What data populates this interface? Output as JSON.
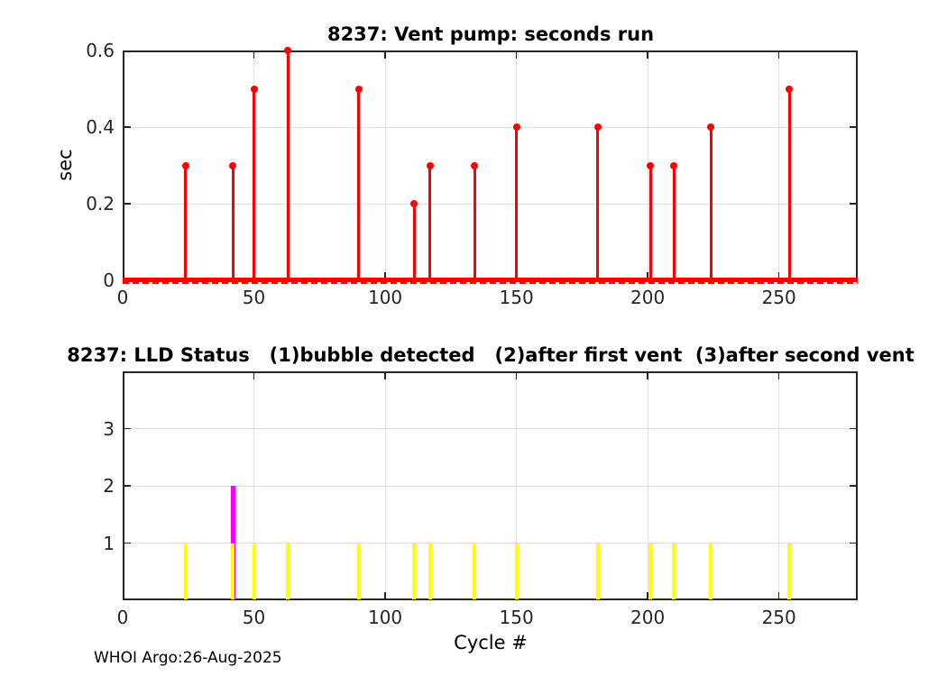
{
  "figure": {
    "background": "#ffffff",
    "footer_text": "WHOI Argo:26-Aug-2025",
    "axis_color": "#262626",
    "grid_color": "#e0e0e0",
    "text_color": "#000000"
  },
  "chart_data": [
    {
      "type": "stem",
      "title": "8237: Vent pump: seconds run",
      "xlabel": "",
      "ylabel": "sec",
      "xlim": [
        0,
        280
      ],
      "ylim": [
        0,
        0.6
      ],
      "xticks": [
        0,
        50,
        100,
        150,
        200,
        250
      ],
      "yticks": [
        0,
        0.2,
        0.4,
        0.6
      ],
      "grid": true,
      "legend": "none",
      "series": [
        {
          "name": "vent-pump-seconds-run",
          "color": "#ff0000",
          "marker": "filled-circle",
          "points": [
            {
              "x": 24,
              "y": 0.3
            },
            {
              "x": 42,
              "y": 0.3
            },
            {
              "x": 50,
              "y": 0.5
            },
            {
              "x": 63,
              "y": 0.6
            },
            {
              "x": 90,
              "y": 0.5
            },
            {
              "x": 111,
              "y": 0.2
            },
            {
              "x": 117,
              "y": 0.3
            },
            {
              "x": 134,
              "y": 0.3
            },
            {
              "x": 150,
              "y": 0.4
            },
            {
              "x": 181,
              "y": 0.4
            },
            {
              "x": 201,
              "y": 0.3
            },
            {
              "x": 210,
              "y": 0.3
            },
            {
              "x": 224,
              "y": 0.4
            },
            {
              "x": 254,
              "y": 0.5
            }
          ],
          "baseline": {
            "y": 0,
            "x_start": 0,
            "x_end": 280,
            "all_other_cycles_value": 0
          }
        }
      ]
    },
    {
      "type": "stem",
      "title": "8237: LLD Status   (1)bubble detected   (2)after first vent  (3)after second vent",
      "xlabel": "Cycle #",
      "ylabel": "",
      "xlim": [
        0,
        280
      ],
      "ylim": [
        0,
        4
      ],
      "xticks": [
        0,
        50,
        100,
        150,
        200,
        250
      ],
      "yticks": [
        1,
        2,
        3
      ],
      "grid": true,
      "legend": "none",
      "series": [
        {
          "name": "lld-status-after-first-vent",
          "color": "#ff00ff",
          "marker": "none",
          "points": [
            {
              "x": 42,
              "y": 2
            }
          ]
        },
        {
          "name": "lld-status-bubble-detected",
          "color": "#ffff00",
          "marker": "none",
          "points": [
            {
              "x": 24,
              "y": 1
            },
            {
              "x": 42,
              "y": 1
            },
            {
              "x": 50,
              "y": 1
            },
            {
              "x": 63,
              "y": 1
            },
            {
              "x": 90,
              "y": 1
            },
            {
              "x": 111,
              "y": 1
            },
            {
              "x": 117,
              "y": 1
            },
            {
              "x": 134,
              "y": 1
            },
            {
              "x": 150,
              "y": 1
            },
            {
              "x": 181,
              "y": 1
            },
            {
              "x": 201,
              "y": 1
            },
            {
              "x": 210,
              "y": 1
            },
            {
              "x": 224,
              "y": 1
            },
            {
              "x": 254,
              "y": 1
            }
          ]
        }
      ]
    }
  ]
}
